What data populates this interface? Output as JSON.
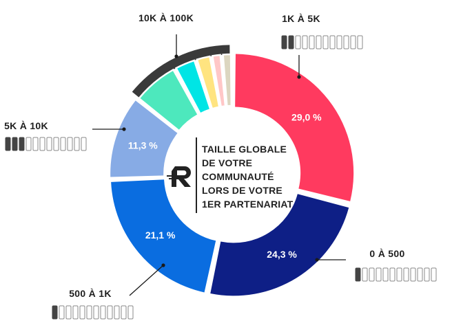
{
  "chart_data": {
    "type": "donut",
    "center_title": [
      "TAILLE GLOBALE",
      "DE VOTRE",
      "COMMUNAUTÉ",
      "LORS DE VOTRE",
      "1ER PARTENARIAT"
    ],
    "slices": [
      {
        "category": "1K À 5K",
        "value": 29.0,
        "label": "29,0 %",
        "color": "#ff3a5f",
        "level": 2
      },
      {
        "category": "0 À 500",
        "value": 24.3,
        "label": "24,3 %",
        "color": "#0e1f86",
        "level": 1
      },
      {
        "category": "500 À 1K",
        "value": 21.1,
        "label": "21,1 %",
        "color": "#0a6de0",
        "level": 1
      },
      {
        "category": "5K À 10K",
        "value": 11.3,
        "label": "11,3 %",
        "color": "#87abe5",
        "level": 3
      },
      {
        "category": "10K À 100K",
        "value": 14.3,
        "label": "",
        "color": "#3a3a3a",
        "level": 0,
        "sub_segments": [
          {
            "value": 6.4,
            "color": "#4de8bd"
          },
          {
            "value": 3.0,
            "color": "#00e5e5"
          },
          {
            "value": 2.1,
            "color": "#ffe480"
          },
          {
            "value": 1.4,
            "color": "#ffc7c7"
          },
          {
            "value": 1.4,
            "color": "#dcd6c0"
          }
        ]
      }
    ],
    "scale_steps": 12,
    "colors": {
      "bar_filled": "#444444",
      "bar_empty": "#8a8a8a",
      "leader": "#1a1a1a",
      "gap": "#ffffff"
    },
    "logo_icon": "brand-r-logo-icon"
  }
}
